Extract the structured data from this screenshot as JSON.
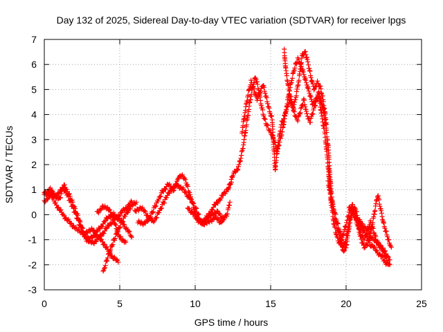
{
  "chart_data": {
    "type": "scatter",
    "title": "Day 132 of 2025, Sidereal Day-to-day VTEC variation (SDTVAR) for receiver lpgs",
    "xlabel": "GPS time / hours",
    "ylabel": "SDTVAR / TECUs",
    "xlim": [
      0,
      25
    ],
    "ylim": [
      -3,
      7
    ],
    "xticks": [
      "0",
      "5",
      "10",
      "15",
      "20",
      "25"
    ],
    "yticks": [
      "-3",
      "-2",
      "-1",
      "0",
      "1",
      "2",
      "3",
      "4",
      "5",
      "6",
      "7"
    ],
    "grid": true,
    "marker": "+",
    "series": [
      {
        "name": "SDTVAR",
        "color": "#ff0000",
        "tracks": [
          [
            [
              0,
              0.8
            ],
            [
              0.4,
              1.0
            ],
            [
              0.8,
              0.7
            ],
            [
              1.2,
              1.1
            ],
            [
              1.6,
              0.7
            ],
            [
              2.1,
              0.0
            ],
            [
              2.6,
              -0.8
            ],
            [
              3.0,
              -1.0
            ],
            [
              3.6,
              -0.6
            ],
            [
              4.1,
              -0.2
            ],
            [
              4.6,
              0.0
            ],
            [
              5.0,
              -0.2
            ],
            [
              5.4,
              -0.5
            ],
            [
              5.8,
              -0.9
            ]
          ],
          [
            [
              0,
              0.5
            ],
            [
              0.5,
              0.9
            ],
            [
              1.0,
              0.6
            ],
            [
              1.3,
              1.2
            ],
            [
              1.8,
              0.6
            ],
            [
              2.3,
              -0.2
            ],
            [
              2.8,
              -1.0
            ],
            [
              3.3,
              -1.1
            ],
            [
              3.8,
              -0.8
            ],
            [
              4.3,
              -0.4
            ],
            [
              4.8,
              -0.1
            ],
            [
              5.3,
              0.2
            ],
            [
              5.8,
              0.5
            ]
          ],
          [
            [
              0,
              0.9
            ],
            [
              0.5,
              0.7
            ],
            [
              1.0,
              0.2
            ],
            [
              1.5,
              -0.2
            ],
            [
              2.0,
              -0.5
            ],
            [
              2.6,
              -0.8
            ],
            [
              3.2,
              -0.6
            ],
            [
              3.6,
              -0.9
            ],
            [
              4.0,
              -1.2
            ],
            [
              4.4,
              -1.6
            ],
            [
              4.9,
              -1.9
            ]
          ],
          [
            [
              3.9,
              -2.3
            ],
            [
              4.2,
              -1.7
            ],
            [
              4.5,
              -1.2
            ],
            [
              4.9,
              -0.6
            ],
            [
              5.3,
              -0.1
            ],
            [
              5.7,
              0.3
            ],
            [
              6.1,
              0.5
            ]
          ],
          [
            [
              3.5,
              0.1
            ],
            [
              3.9,
              0.3
            ],
            [
              4.3,
              0.2
            ],
            [
              4.7,
              -0.4
            ],
            [
              5.0,
              -0.9
            ],
            [
              5.4,
              -1.1
            ]
          ],
          [
            [
              6.0,
              0.1
            ],
            [
              6.4,
              0.3
            ],
            [
              6.8,
              0.0
            ],
            [
              7.2,
              -0.3
            ],
            [
              7.6,
              0.1
            ],
            [
              8.0,
              0.6
            ],
            [
              8.4,
              1.0
            ],
            [
              8.8,
              1.2
            ],
            [
              9.2,
              1.0
            ],
            [
              9.6,
              0.7
            ],
            [
              10.0,
              0.3
            ],
            [
              10.4,
              -0.3
            ],
            [
              10.8,
              -0.1
            ],
            [
              11.2,
              0.3
            ],
            [
              11.6,
              0.6
            ],
            [
              12.0,
              0.9
            ],
            [
              12.4,
              1.3
            ]
          ],
          [
            [
              6.2,
              -0.3
            ],
            [
              6.6,
              -0.4
            ],
            [
              7.0,
              -0.1
            ],
            [
              7.4,
              0.4
            ],
            [
              7.8,
              0.9
            ],
            [
              8.2,
              1.2
            ],
            [
              8.6,
              1.0
            ],
            [
              8.9,
              1.5
            ],
            [
              9.1,
              1.6
            ],
            [
              9.4,
              1.3
            ],
            [
              9.7,
              0.7
            ],
            [
              10.1,
              -0.1
            ],
            [
              10.5,
              -0.4
            ],
            [
              10.9,
              -0.3
            ],
            [
              11.3,
              -0.1
            ],
            [
              11.7,
              -0.3
            ],
            [
              12.1,
              0.0
            ],
            [
              12.3,
              0.5
            ]
          ],
          [
            [
              9.5,
              0.3
            ],
            [
              9.9,
              0.0
            ],
            [
              10.3,
              -0.3
            ],
            [
              10.7,
              -0.2
            ],
            [
              11.1,
              0.0
            ],
            [
              11.5,
              0.1
            ],
            [
              11.9,
              -0.2
            ]
          ],
          [
            [
              12.2,
              1.0
            ],
            [
              12.5,
              1.6
            ],
            [
              12.8,
              1.8
            ],
            [
              13.0,
              2.2
            ],
            [
              13.2,
              2.8
            ],
            [
              13.4,
              3.6
            ],
            [
              13.6,
              4.4
            ],
            [
              13.8,
              5.1
            ],
            [
              14.0,
              5.5
            ],
            [
              14.2,
              5.0
            ],
            [
              14.4,
              4.3
            ],
            [
              14.6,
              3.8
            ],
            [
              14.8,
              3.5
            ],
            [
              15.0,
              3.3
            ],
            [
              15.2,
              3.0
            ],
            [
              15.4,
              2.6
            ],
            [
              15.6,
              2.9
            ],
            [
              15.8,
              3.4
            ],
            [
              16.0,
              4.1
            ],
            [
              16.2,
              4.8
            ],
            [
              16.4,
              5.4
            ],
            [
              16.6,
              5.9
            ],
            [
              16.8,
              6.2
            ],
            [
              17.0,
              6.0
            ],
            [
              17.2,
              5.6
            ],
            [
              17.4,
              5.2
            ],
            [
              17.6,
              4.8
            ],
            [
              17.8,
              4.4
            ],
            [
              18.0,
              4.6
            ],
            [
              18.2,
              4.9
            ],
            [
              18.4,
              4.3
            ]
          ],
          [
            [
              13.1,
              3.3
            ],
            [
              13.3,
              4.1
            ],
            [
              13.5,
              4.8
            ],
            [
              13.7,
              5.3
            ],
            [
              13.9,
              5.0
            ],
            [
              14.1,
              4.6
            ],
            [
              14.3,
              4.9
            ],
            [
              14.5,
              5.2
            ],
            [
              14.7,
              4.7
            ],
            [
              14.9,
              4.2
            ],
            [
              15.1,
              3.8
            ],
            [
              15.3,
              1.8
            ],
            [
              15.5,
              2.8
            ],
            [
              15.7,
              3.6
            ],
            [
              15.9,
              3.9
            ],
            [
              16.1,
              4.3
            ],
            [
              16.3,
              4.6
            ],
            [
              16.5,
              4.2
            ],
            [
              16.7,
              4.8
            ],
            [
              16.9,
              5.5
            ],
            [
              17.1,
              6.4
            ],
            [
              17.3,
              6.5
            ],
            [
              17.5,
              6.0
            ],
            [
              17.7,
              5.4
            ],
            [
              17.9,
              5.0
            ],
            [
              18.1,
              5.3
            ],
            [
              18.3,
              5.1
            ],
            [
              18.5,
              4.5
            ],
            [
              18.7,
              3.6
            ]
          ],
          [
            [
              15.9,
              6.6
            ],
            [
              16.0,
              5.8
            ],
            [
              16.2,
              5.0
            ],
            [
              16.4,
              4.5
            ],
            [
              16.6,
              4.0
            ],
            [
              16.8,
              3.8
            ],
            [
              17.0,
              4.2
            ],
            [
              17.2,
              4.6
            ],
            [
              17.4,
              4.0
            ],
            [
              17.6,
              3.7
            ],
            [
              17.8,
              4.1
            ],
            [
              18.0,
              4.5
            ],
            [
              18.2,
              4.7
            ],
            [
              18.4,
              3.9
            ],
            [
              18.6,
              3.2
            ],
            [
              18.8,
              2.0
            ],
            [
              19.0,
              0.5
            ],
            [
              19.2,
              -0.4
            ],
            [
              19.4,
              -0.9
            ],
            [
              19.6,
              -1.2
            ],
            [
              19.8,
              -0.8
            ],
            [
              20.0,
              -0.4
            ],
            [
              20.2,
              0.1
            ],
            [
              20.4,
              0.4
            ],
            [
              20.6,
              0.0
            ],
            [
              20.8,
              -0.4
            ],
            [
              21.0,
              -0.8
            ],
            [
              21.2,
              -1.0
            ],
            [
              21.4,
              -0.7
            ],
            [
              21.6,
              -0.3
            ],
            [
              21.8,
              -0.6
            ],
            [
              22.0,
              -1.0
            ],
            [
              22.2,
              -1.2
            ],
            [
              22.4,
              -1.4
            ],
            [
              22.6,
              -1.7
            ],
            [
              22.8,
              -2.0
            ]
          ],
          [
            [
              18.4,
              4.5
            ],
            [
              18.6,
              3.8
            ],
            [
              18.8,
              2.8
            ],
            [
              19.0,
              1.0
            ],
            [
              19.2,
              0.0
            ],
            [
              19.4,
              -0.5
            ],
            [
              19.6,
              -0.9
            ],
            [
              19.8,
              -1.3
            ],
            [
              20.0,
              -1.0
            ],
            [
              20.2,
              -0.3
            ],
            [
              20.4,
              0.2
            ],
            [
              20.6,
              0.3
            ],
            [
              20.8,
              -0.2
            ],
            [
              21.0,
              -0.5
            ],
            [
              21.2,
              -0.7
            ],
            [
              21.4,
              -0.9
            ],
            [
              21.6,
              -1.2
            ],
            [
              21.8,
              -1.3
            ],
            [
              22.0,
              -1.4
            ],
            [
              22.2,
              -1.6
            ],
            [
              22.4,
              -1.7
            ],
            [
              22.6,
              -1.9
            ],
            [
              22.9,
              -2.0
            ]
          ],
          [
            [
              18.8,
              1.3
            ],
            [
              19.0,
              0.7
            ],
            [
              19.2,
              0.2
            ],
            [
              19.4,
              -0.3
            ],
            [
              19.6,
              -0.7
            ],
            [
              19.8,
              -1.5
            ],
            [
              20.0,
              -1.3
            ],
            [
              20.2,
              -0.5
            ],
            [
              20.4,
              0.1
            ],
            [
              20.6,
              -0.1
            ],
            [
              20.8,
              -0.5
            ],
            [
              21.0,
              -1.0
            ],
            [
              21.2,
              -1.3
            ],
            [
              21.4,
              -1.2
            ],
            [
              21.6,
              -0.8
            ],
            [
              21.8,
              -0.2
            ],
            [
              22.0,
              0.5
            ],
            [
              22.1,
              0.8
            ],
            [
              22.3,
              0.2
            ],
            [
              22.5,
              -0.4
            ],
            [
              22.7,
              -0.8
            ],
            [
              22.9,
              -1.2
            ],
            [
              23.0,
              -1.3
            ]
          ],
          [
            [
              20.2,
              0.3
            ],
            [
              20.5,
              0.1
            ],
            [
              20.8,
              -0.2
            ],
            [
              21.1,
              -0.4
            ],
            [
              21.4,
              -0.6
            ],
            [
              21.7,
              -0.9
            ],
            [
              22.0,
              -1.1
            ],
            [
              22.3,
              -1.3
            ],
            [
              22.6,
              -1.5
            ],
            [
              22.9,
              -1.8
            ]
          ]
        ]
      }
    ]
  }
}
